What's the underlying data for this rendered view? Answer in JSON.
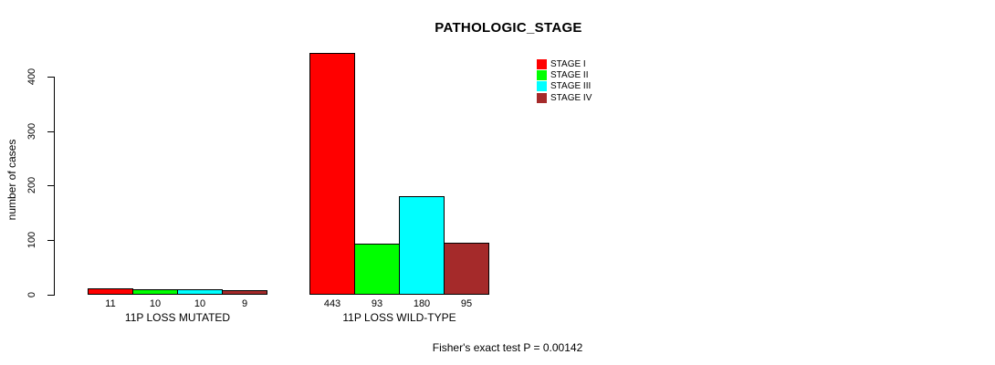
{
  "chart_data": {
    "type": "bar",
    "title": "PATHOLOGIC_STAGE",
    "xlabel": "",
    "ylabel": "number of cases",
    "yticks": [
      0,
      100,
      200,
      300,
      400
    ],
    "ylim": [
      0,
      450
    ],
    "grid": false,
    "legend_position": "top-right",
    "categories": [
      "11P LOSS MUTATED",
      "11P LOSS WILD-TYPE"
    ],
    "series": [
      {
        "name": "STAGE I",
        "color": "#FF0000",
        "values": [
          11,
          443
        ]
      },
      {
        "name": "STAGE II",
        "color": "#00FF00",
        "values": [
          10,
          93
        ]
      },
      {
        "name": "STAGE III",
        "color": "#00FFFF",
        "values": [
          10,
          180
        ]
      },
      {
        "name": "STAGE IV",
        "color": "#A52A2A",
        "values": [
          9,
          95
        ]
      }
    ],
    "annotation": "Fisher's exact test P = 0.00142"
  },
  "colors": {
    "axis": "#000000",
    "bar_border": "#000000",
    "background": "#FFFFFF"
  }
}
